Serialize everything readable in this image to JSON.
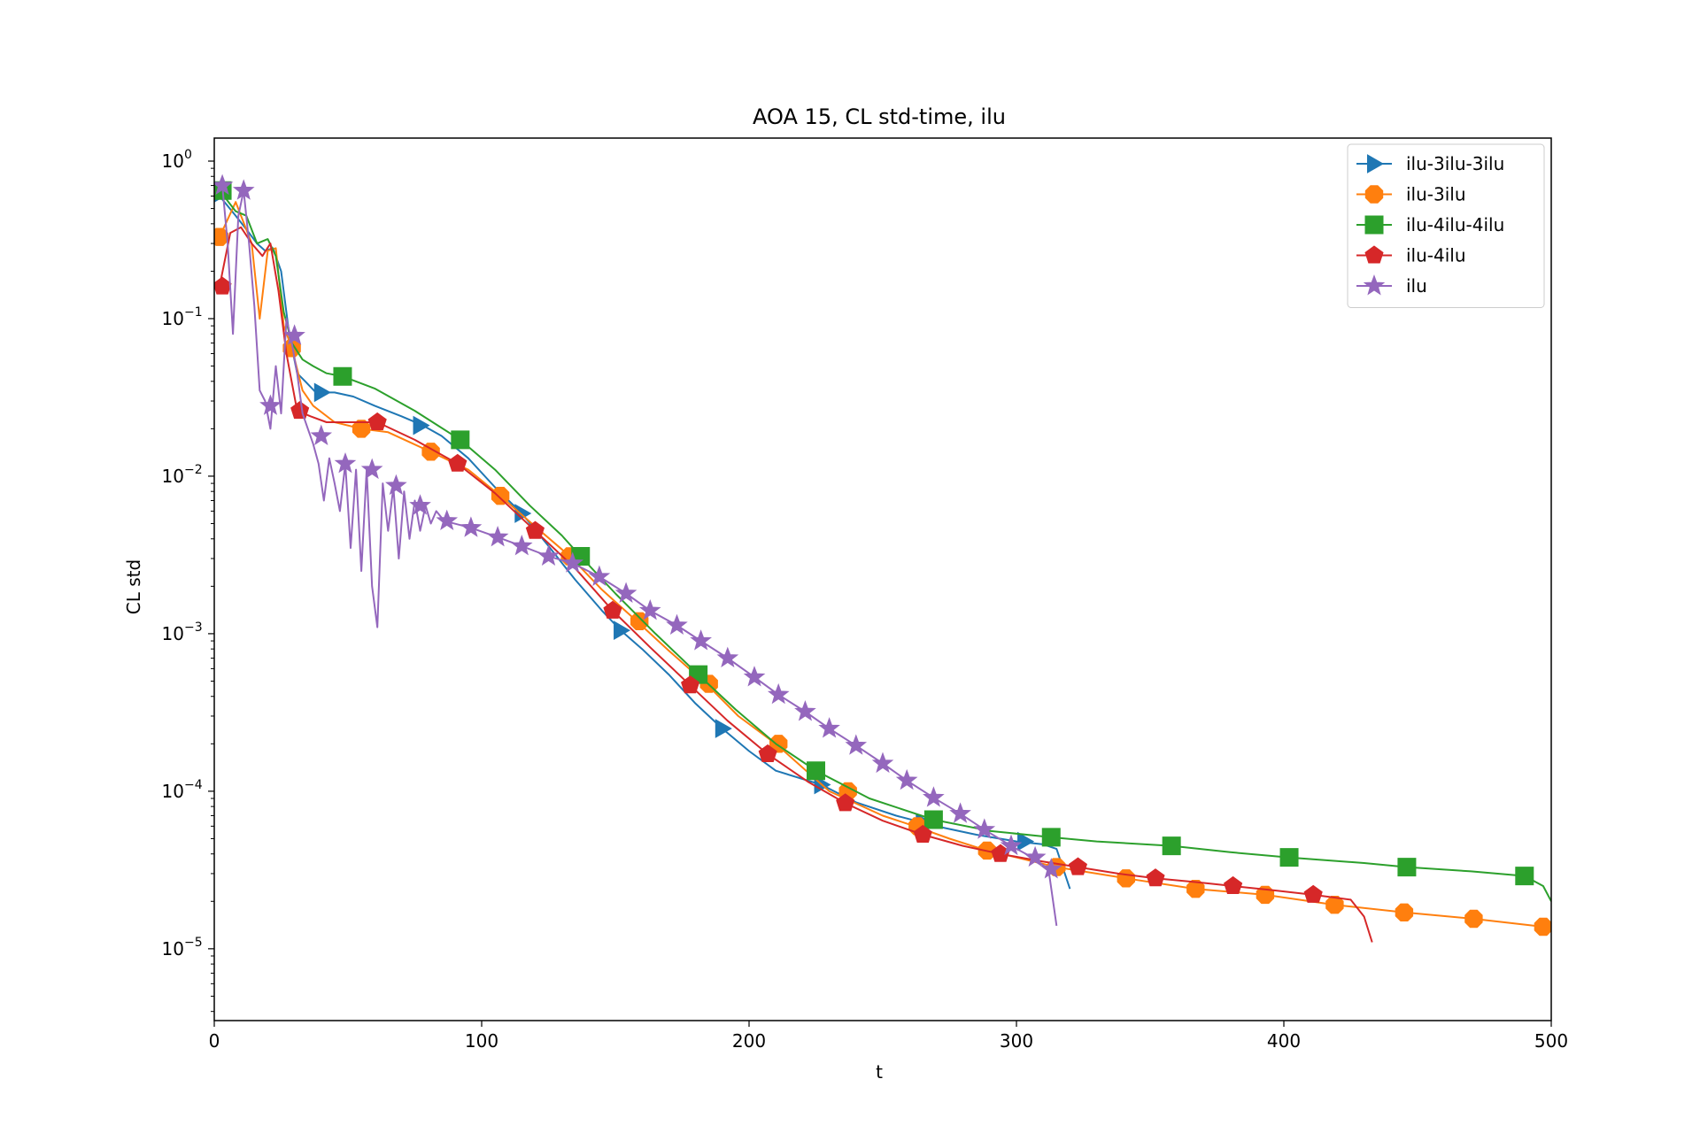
{
  "chart_data": {
    "type": "line",
    "title": "AOA 15, CL std-time, ilu",
    "xlabel": "t",
    "ylabel": "CL std",
    "xlim": [
      0,
      500
    ],
    "ylim": [
      3.5e-06,
      1.4
    ],
    "yscale": "log",
    "x_ticks": [
      0,
      100,
      200,
      300,
      400,
      500
    ],
    "y_ticks": [
      {
        "value": 1e-05,
        "base": "10",
        "exp": "−5"
      },
      {
        "value": 0.0001,
        "base": "10",
        "exp": "−4"
      },
      {
        "value": 0.001,
        "base": "10",
        "exp": "−3"
      },
      {
        "value": 0.01,
        "base": "10",
        "exp": "−2"
      },
      {
        "value": 0.1,
        "base": "10",
        "exp": "−1"
      },
      {
        "value": 1,
        "base": "10",
        "exp": "0"
      }
    ],
    "legend_position": "upper-right",
    "grid": false,
    "series": [
      {
        "name": "ilu-3ilu-3ilu",
        "color": "#1f77b4",
        "marker": "triangle-right",
        "x": [
          2,
          8,
          13,
          16,
          19,
          22,
          25,
          28,
          31,
          34,
          38,
          45,
          52,
          60,
          70,
          78,
          85,
          95,
          105,
          115,
          125,
          135,
          145,
          152,
          160,
          170,
          180,
          190,
          200,
          210,
          227,
          240,
          255,
          270,
          285,
          300,
          310,
          315,
          320
        ],
        "y": [
          0.6,
          0.45,
          0.35,
          0.3,
          0.27,
          0.28,
          0.2,
          0.08,
          0.045,
          0.04,
          0.034,
          0.034,
          0.032,
          0.028,
          0.024,
          0.021,
          0.018,
          0.013,
          0.0085,
          0.0058,
          0.0036,
          0.0022,
          0.0014,
          0.00105,
          0.0008,
          0.00055,
          0.00036,
          0.00025,
          0.00018,
          0.000135,
          0.00011,
          8.5e-05,
          7e-05,
          6e-05,
          5.3e-05,
          4.8e-05,
          4.6e-05,
          4.3e-05,
          2.4e-05
        ],
        "marker_x": [
          2,
          40,
          77,
          115,
          152,
          190,
          227,
          265,
          303
        ],
        "marker_y": [
          0.62,
          0.034,
          0.021,
          0.0058,
          0.00105,
          0.00025,
          0.00011,
          6.3e-05,
          4.8e-05
        ]
      },
      {
        "name": "ilu-3ilu",
        "color": "#ff7f0e",
        "marker": "octagon",
        "x": [
          2,
          8,
          14,
          17,
          20,
          23,
          26,
          29,
          33,
          37,
          45,
          55,
          65,
          82,
          95,
          107,
          120,
          133,
          145,
          158,
          170,
          184,
          196,
          210,
          230,
          250,
          262,
          275,
          289,
          300,
          315,
          341,
          367,
          393,
          419,
          445,
          471,
          497,
          500
        ],
        "y": [
          0.33,
          0.55,
          0.3,
          0.1,
          0.27,
          0.28,
          0.09,
          0.065,
          0.035,
          0.028,
          0.022,
          0.02,
          0.019,
          0.014,
          0.011,
          0.0075,
          0.0048,
          0.0031,
          0.0019,
          0.0012,
          0.00078,
          0.00048,
          0.0003,
          0.0002,
          0.0001,
          7e-05,
          6e-05,
          5e-05,
          4.2e-05,
          3.8e-05,
          3.3e-05,
          2.8e-05,
          2.4e-05,
          2.2e-05,
          1.9e-05,
          1.7e-05,
          1.55e-05,
          1.38e-05,
          1.35e-05
        ],
        "marker_x": [
          2,
          29,
          55,
          81,
          107,
          133,
          159,
          185,
          211,
          237,
          263,
          289,
          315,
          341,
          367,
          393,
          419,
          445,
          471,
          497
        ],
        "marker_y": [
          0.33,
          0.065,
          0.02,
          0.0143,
          0.0075,
          0.0031,
          0.0012,
          0.00048,
          0.0002,
          0.0001,
          6e-05,
          4.2e-05,
          3.3e-05,
          2.8e-05,
          2.4e-05,
          2.2e-05,
          1.9e-05,
          1.7e-05,
          1.55e-05,
          1.38e-05
        ]
      },
      {
        "name": "ilu-4ilu-4ilu",
        "color": "#2ca02c",
        "marker": "square",
        "x": [
          2,
          8,
          12,
          16,
          20,
          23,
          26,
          29,
          33,
          37,
          42,
          48,
          60,
          75,
          92,
          105,
          118,
          130,
          137,
          150,
          165,
          181,
          195,
          210,
          225,
          245,
          269,
          290,
          313,
          330,
          358,
          380,
          402,
          430,
          446,
          470,
          490,
          497,
          500
        ],
        "y": [
          0.65,
          0.48,
          0.45,
          0.3,
          0.32,
          0.25,
          0.11,
          0.07,
          0.055,
          0.05,
          0.045,
          0.043,
          0.036,
          0.026,
          0.017,
          0.011,
          0.0065,
          0.0042,
          0.0031,
          0.0018,
          0.001,
          0.00055,
          0.00033,
          0.0002,
          0.000135,
          9e-05,
          6.6e-05,
          5.6e-05,
          5.1e-05,
          4.8e-05,
          4.5e-05,
          4.1e-05,
          3.8e-05,
          3.5e-05,
          3.3e-05,
          3.1e-05,
          2.9e-05,
          2.5e-05,
          2e-05
        ],
        "marker_x": [
          3,
          48,
          92,
          137,
          181,
          225,
          269,
          313,
          358,
          402,
          446,
          490
        ],
        "marker_y": [
          0.65,
          0.043,
          0.017,
          0.0031,
          0.00055,
          0.000135,
          6.6e-05,
          5.1e-05,
          4.5e-05,
          3.8e-05,
          3.3e-05,
          2.9e-05
        ]
      },
      {
        "name": "ilu-4ilu",
        "color": "#d62728",
        "marker": "pentagon",
        "x": [
          2,
          6,
          10,
          14,
          18,
          21,
          24,
          27,
          31,
          36,
          42,
          50,
          61,
          75,
          91,
          105,
          120,
          135,
          149,
          163,
          178,
          192,
          207,
          222,
          236,
          250,
          265,
          280,
          294,
          309,
          323,
          338,
          352,
          367,
          381,
          396,
          411,
          425,
          430,
          433
        ],
        "y": [
          0.16,
          0.35,
          0.38,
          0.3,
          0.25,
          0.3,
          0.15,
          0.06,
          0.026,
          0.024,
          0.022,
          0.022,
          0.022,
          0.017,
          0.012,
          0.0078,
          0.0045,
          0.0026,
          0.0014,
          0.00082,
          0.00047,
          0.00028,
          0.000172,
          0.000115,
          8.4e-05,
          6.5e-05,
          5.3e-05,
          4.5e-05,
          4e-05,
          3.6e-05,
          3.3e-05,
          3e-05,
          2.8e-05,
          2.65e-05,
          2.5e-05,
          2.35e-05,
          2.2e-05,
          2.05e-05,
          1.6e-05,
          1.1e-05
        ],
        "marker_x": [
          3,
          32,
          61,
          91,
          120,
          149,
          178,
          207,
          236,
          265,
          294,
          323,
          352,
          381,
          411
        ],
        "marker_y": [
          0.16,
          0.026,
          0.022,
          0.012,
          0.0045,
          0.0014,
          0.00047,
          0.000172,
          8.4e-05,
          5.3e-05,
          4e-05,
          3.3e-05,
          2.8e-05,
          2.5e-05,
          2.2e-05
        ],
        "marker_y_ext": []
      },
      {
        "name": "ilu",
        "color": "#9467bd",
        "marker": "star",
        "x": [
          3,
          5,
          7,
          9,
          11,
          13,
          15,
          17,
          19,
          21,
          23,
          25,
          27,
          29,
          31,
          33,
          35,
          37,
          39,
          41,
          43,
          45,
          47,
          49,
          51,
          53,
          55,
          57,
          59,
          61,
          63,
          65,
          67,
          69,
          71,
          73,
          75,
          77,
          79,
          81,
          83,
          86,
          96,
          106,
          115,
          125,
          134,
          144,
          154,
          163,
          173,
          182,
          192,
          202,
          211,
          221,
          230,
          240,
          250,
          259,
          269,
          279,
          288,
          298,
          306,
          312,
          315
        ],
        "y": [
          0.7,
          0.3,
          0.08,
          0.45,
          0.65,
          0.3,
          0.12,
          0.035,
          0.03,
          0.02,
          0.05,
          0.025,
          0.1,
          0.07,
          0.045,
          0.025,
          0.02,
          0.016,
          0.012,
          0.007,
          0.013,
          0.009,
          0.006,
          0.012,
          0.0035,
          0.011,
          0.0025,
          0.011,
          0.002,
          0.0011,
          0.009,
          0.0045,
          0.0085,
          0.003,
          0.008,
          0.004,
          0.007,
          0.0045,
          0.0065,
          0.005,
          0.006,
          0.0052,
          0.0047,
          0.0041,
          0.0036,
          0.0031,
          0.0028,
          0.0023,
          0.0018,
          0.0014,
          0.00113,
          0.0009,
          0.0007,
          0.00053,
          0.00041,
          0.00032,
          0.00025,
          0.000195,
          0.00015,
          0.000117,
          9.1e-05,
          7.2e-05,
          5.7e-05,
          4.5e-05,
          3.8e-05,
          3.2e-05,
          1.4e-05
        ],
        "marker_x": [
          3,
          11,
          21,
          30,
          40,
          49,
          59,
          68,
          77,
          87,
          96,
          106,
          115,
          125,
          134,
          144,
          154,
          163,
          173,
          182,
          192,
          202,
          211,
          221,
          230,
          240,
          250,
          259,
          269,
          279,
          288,
          298,
          307,
          313
        ],
        "marker_y": [
          0.7,
          0.65,
          0.028,
          0.078,
          0.018,
          0.012,
          0.011,
          0.0087,
          0.0065,
          0.0052,
          0.0047,
          0.0041,
          0.0036,
          0.0031,
          0.0028,
          0.0023,
          0.0018,
          0.0014,
          0.00113,
          0.0009,
          0.0007,
          0.00053,
          0.00041,
          0.00032,
          0.00025,
          0.000195,
          0.00015,
          0.000117,
          9.1e-05,
          7.2e-05,
          5.7e-05,
          4.5e-05,
          3.8e-05,
          3.2e-05
        ]
      }
    ]
  }
}
